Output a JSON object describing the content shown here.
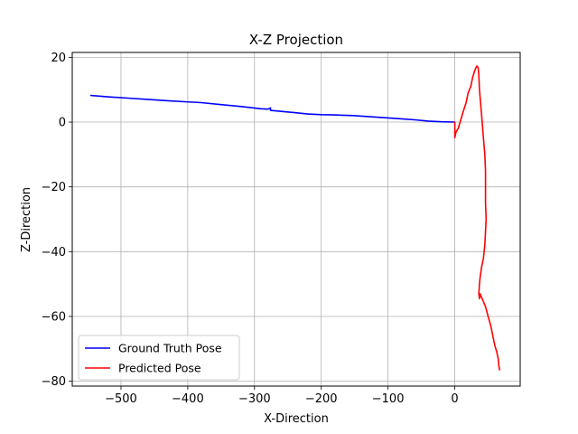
{
  "chart_data": {
    "type": "line",
    "title": "X-Z Projection",
    "xlabel": "X-Direction",
    "ylabel": "Z-Direction",
    "xlim": [
      -573,
      98
    ],
    "ylim": [
      -81.5,
      21.5
    ],
    "xticks": [
      -500,
      -400,
      -300,
      -200,
      -100,
      0
    ],
    "xtick_labels": [
      "−500",
      "−400",
      "−300",
      "−200",
      "−100",
      "0"
    ],
    "yticks": [
      20,
      0,
      -20,
      -40,
      -60,
      -80
    ],
    "ytick_labels": [
      "20",
      "0",
      "−20",
      "−40",
      "−60",
      "−80"
    ],
    "grid": true,
    "legend_position": "lower-left",
    "series": [
      {
        "name": "Ground Truth Pose",
        "color": "#0000ff",
        "points": [
          [
            -545,
            8.2
          ],
          [
            -520,
            7.8
          ],
          [
            -490,
            7.4
          ],
          [
            -460,
            7.0
          ],
          [
            -430,
            6.6
          ],
          [
            -405,
            6.3
          ],
          [
            -380,
            6.0
          ],
          [
            -350,
            5.4
          ],
          [
            -320,
            4.8
          ],
          [
            -290,
            4.1
          ],
          [
            -280,
            4.0
          ],
          [
            -276,
            4.4
          ],
          [
            -276,
            3.6
          ],
          [
            -260,
            3.3
          ],
          [
            -240,
            2.9
          ],
          [
            -220,
            2.5
          ],
          [
            -200,
            2.3
          ],
          [
            -180,
            2.2
          ],
          [
            -150,
            2.0
          ],
          [
            -130,
            1.7
          ],
          [
            -100,
            1.3
          ],
          [
            -80,
            1.0
          ],
          [
            -60,
            0.7
          ],
          [
            -40,
            0.3
          ],
          [
            -20,
            0.1
          ],
          [
            0,
            0.0
          ]
        ]
      },
      {
        "name": "Predicted Pose",
        "color": "#ff0000",
        "points": [
          [
            0,
            0.0
          ],
          [
            0,
            -4.8
          ],
          [
            2,
            -3.0
          ],
          [
            5,
            -2.0
          ],
          [
            8,
            0.0
          ],
          [
            12,
            2.8
          ],
          [
            17,
            6.0
          ],
          [
            20,
            9.0
          ],
          [
            24,
            11.0
          ],
          [
            27,
            14.0
          ],
          [
            31,
            16.5
          ],
          [
            33,
            17.3
          ],
          [
            35,
            16.8
          ],
          [
            36,
            14.5
          ],
          [
            37,
            10.0
          ],
          [
            39,
            5.0
          ],
          [
            41,
            0.0
          ],
          [
            43,
            -5.0
          ],
          [
            45,
            -10.0
          ],
          [
            46,
            -15.0
          ],
          [
            46,
            -20.0
          ],
          [
            46,
            -25.0
          ],
          [
            47,
            -30.0
          ],
          [
            45,
            -38.0
          ],
          [
            43,
            -42.0
          ],
          [
            40,
            -45.0
          ],
          [
            38,
            -48.0
          ],
          [
            37,
            -50.0
          ],
          [
            36,
            -53.0
          ],
          [
            37,
            -54.5
          ],
          [
            38,
            -53.0
          ],
          [
            42,
            -55.0
          ],
          [
            46,
            -57.0
          ],
          [
            50,
            -60.0
          ],
          [
            54,
            -63.0
          ],
          [
            57,
            -66.0
          ],
          [
            60,
            -69.0
          ],
          [
            63,
            -71.0
          ],
          [
            65,
            -73.0
          ],
          [
            66,
            -75.0
          ],
          [
            67,
            -76.5
          ]
        ]
      }
    ]
  }
}
